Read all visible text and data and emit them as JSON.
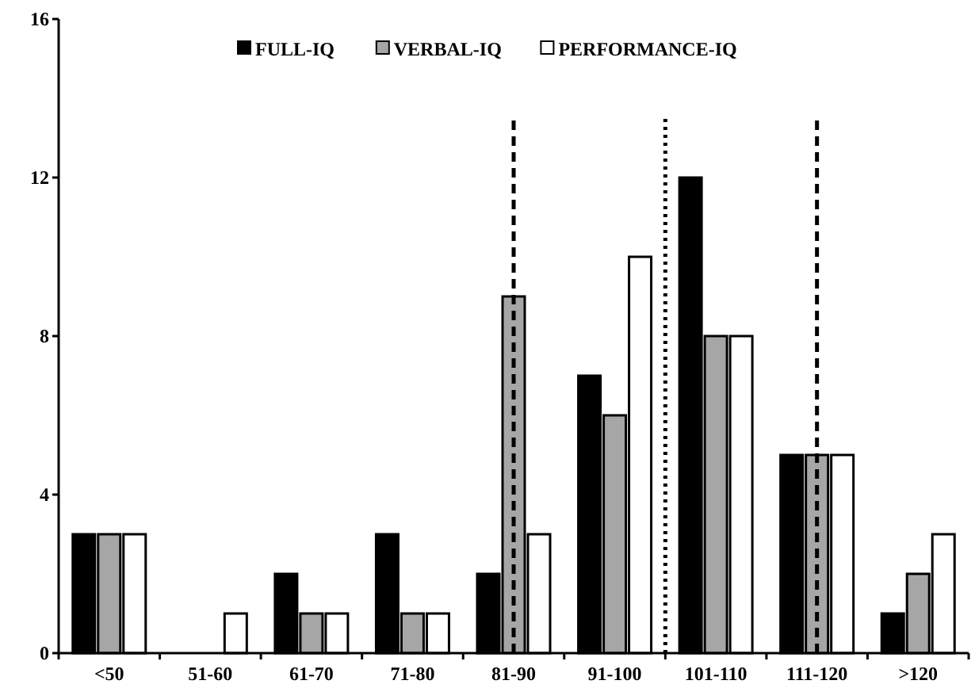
{
  "chart_data": {
    "type": "bar",
    "categories": [
      "<50",
      "51-60",
      "61-70",
      "71-80",
      "81-90",
      "91-100",
      "101-110",
      "111-120",
      ">120"
    ],
    "series": [
      {
        "name": "FULL-IQ",
        "color": "#000000",
        "values": [
          3,
          0,
          2,
          3,
          2,
          7,
          12,
          5,
          1
        ]
      },
      {
        "name": "VERBAL-IQ",
        "color": "#a6a6a6",
        "values": [
          3,
          0,
          1,
          1,
          9,
          6,
          8,
          5,
          2
        ]
      },
      {
        "name": "PERFORMANCE-IQ",
        "color": "#ffffff",
        "values": [
          3,
          1,
          1,
          1,
          3,
          10,
          8,
          5,
          3
        ]
      }
    ],
    "ylim": [
      0,
      16
    ],
    "yticks": [
      0,
      4,
      8,
      12,
      16
    ],
    "legend": "top",
    "ref_lines": [
      {
        "axis": "x",
        "value": "81-90",
        "line_style": "dashed",
        "color": "#000000"
      },
      {
        "axis": "x",
        "value": "111-120",
        "line_style": "dashed",
        "color": "#000000"
      }
    ]
  }
}
